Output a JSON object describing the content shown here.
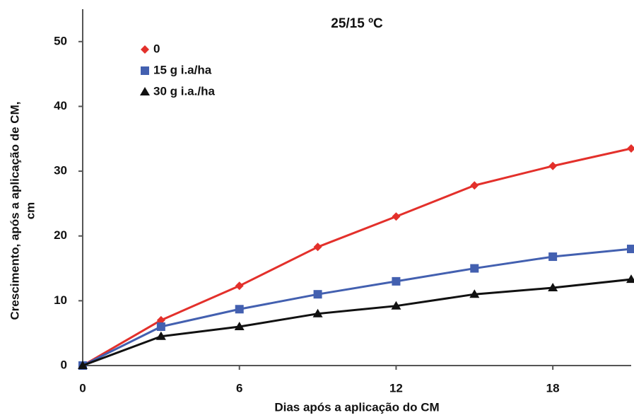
{
  "chart_data": {
    "type": "scatter-line",
    "title": "25/15 ºC",
    "xlabel": "Dias após a aplicação do CM",
    "ylabel": [
      "Crescimento, após a aplicação de CM,",
      "cm"
    ],
    "x": [
      0,
      3,
      6,
      9,
      12,
      15,
      18,
      21
    ],
    "series": [
      {
        "name": "0",
        "color": "#e3302b",
        "marker": "diamond",
        "values": [
          0,
          7,
          12.3,
          18.3,
          23,
          27.8,
          30.8,
          33.5
        ]
      },
      {
        "name": "15 g i.a/ha",
        "color": "#4360b0",
        "marker": "square",
        "values": [
          0,
          6,
          8.7,
          11,
          13,
          15,
          16.8,
          18
        ]
      },
      {
        "name": "30 g i.a./ha",
        "color": "#111111",
        "marker": "triangle",
        "values": [
          0,
          4.5,
          6,
          8,
          9.2,
          11,
          12,
          13.3
        ]
      }
    ],
    "xlim": [
      0,
      21
    ],
    "xticks": [
      0,
      6,
      12,
      18
    ],
    "ylim": [
      0,
      55
    ],
    "yticks": [
      0,
      10,
      20,
      30,
      40,
      50
    ],
    "grid": false,
    "legend": "top-left"
  }
}
